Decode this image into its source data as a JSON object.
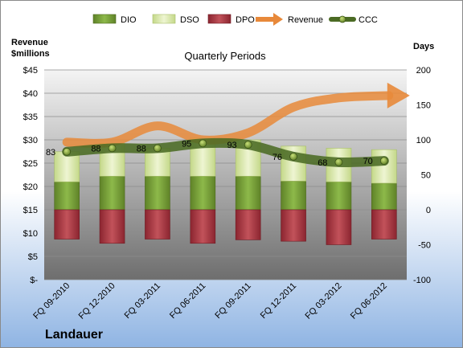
{
  "company": "Landauer",
  "chart_data": {
    "type": "bar",
    "title": "Quarterly Periods",
    "left_axis_title_line1": "Revenue",
    "left_axis_title_line2": "$millions",
    "right_axis_title": "Days",
    "categories": [
      "FQ 09-2010",
      "FQ 12-2010",
      "FQ 03-2011",
      "FQ 06-2011",
      "FQ 09-2011",
      "FQ 12-2011",
      "FQ 03-2012",
      "FQ 06-2012"
    ],
    "left_ylim": [
      0,
      45
    ],
    "left_ticks": [
      0,
      5,
      10,
      15,
      20,
      25,
      30,
      35,
      40,
      45
    ],
    "left_tick_labels": [
      "$-",
      "$5",
      "$10",
      "$15",
      "$20",
      "$25",
      "$30",
      "$35",
      "$40",
      "$45"
    ],
    "right_ylim": [
      -100,
      200
    ],
    "right_ticks": [
      -100,
      -50,
      0,
      50,
      100,
      150,
      200
    ],
    "right_tick_labels": [
      "-100",
      "-50",
      "0",
      "50",
      "100",
      "150",
      "200"
    ],
    "legend": [
      "DIO",
      "DSO",
      "DPO",
      "Revenue",
      "CCC"
    ],
    "series": [
      {
        "name": "DIO",
        "axis": "right",
        "color": "#7fa23a",
        "values": [
          40,
          48,
          48,
          48,
          48,
          41,
          40,
          38
        ]
      },
      {
        "name": "DSO",
        "axis": "right",
        "color": "#dde9b2",
        "values": [
          43,
          47,
          40,
          55,
          52,
          50,
          48,
          48
        ]
      },
      {
        "name": "DPO",
        "axis": "right",
        "color": "#a8323a",
        "values": [
          -42,
          -48,
          -42,
          -48,
          -43,
          -45,
          -50,
          -42
        ]
      },
      {
        "name": "Revenue",
        "axis": "left",
        "color": "#ef8c3a",
        "values": [
          29.5,
          29.5,
          33,
          30,
          31.5,
          37,
          39,
          39.5
        ]
      },
      {
        "name": "CCC",
        "axis": "right",
        "color": "#4d6b2a",
        "values": [
          83,
          88,
          88,
          95,
          93,
          76,
          68,
          70
        ]
      }
    ],
    "ccc_labels": [
      "83",
      "88",
      "88",
      "95",
      "93",
      "76",
      "68",
      "70"
    ]
  },
  "colors": {
    "bg_top": "#ffffff",
    "bg_bottom": "#a9c8ea",
    "plot_top": "#f2f2f2",
    "plot_bottom": "#7a7a7a"
  }
}
